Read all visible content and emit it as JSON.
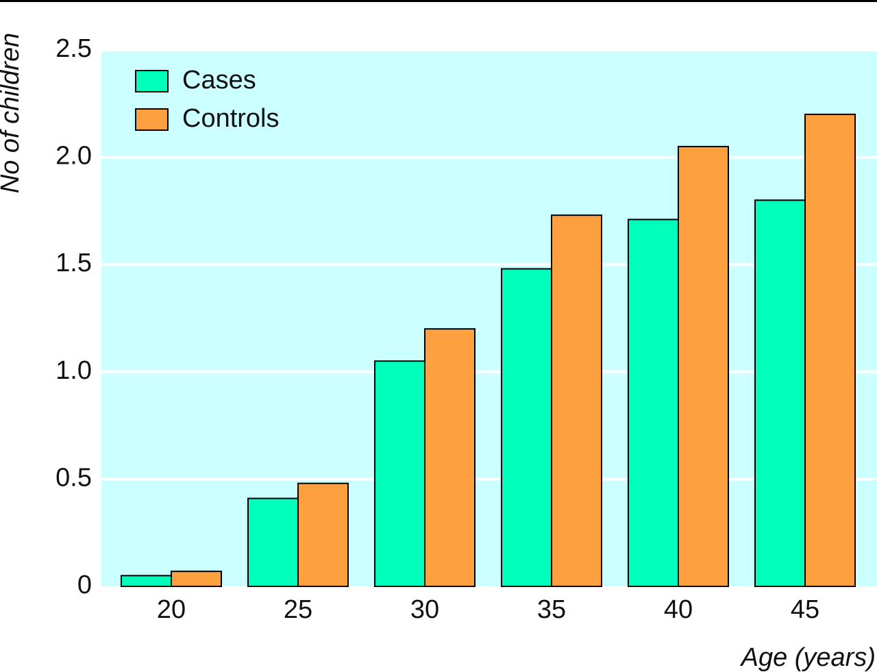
{
  "chart_data": {
    "type": "bar",
    "title": "",
    "xlabel": "Age (years)",
    "ylabel": "No of children",
    "categories": [
      "20",
      "25",
      "30",
      "35",
      "40",
      "45"
    ],
    "series": [
      {
        "name": "Cases",
        "color": "#00ffbb",
        "values": [
          0.05,
          0.41,
          1.05,
          1.48,
          1.71,
          1.8
        ]
      },
      {
        "name": "Controls",
        "color": "#ffa040",
        "values": [
          0.07,
          0.48,
          1.2,
          1.73,
          2.05,
          2.2
        ]
      }
    ],
    "ylim": [
      0,
      2.5
    ],
    "yticks": [
      "0",
      "0.5",
      "1.0",
      "1.5",
      "2.0",
      "2.5"
    ],
    "ytick_values": [
      0,
      0.5,
      1.0,
      1.5,
      2.0,
      2.5
    ],
    "grid": true,
    "legend_position": "top-left",
    "plot_background": "#ccffff",
    "grid_color": "#ffffff",
    "bar_edge_color": "#000000"
  }
}
